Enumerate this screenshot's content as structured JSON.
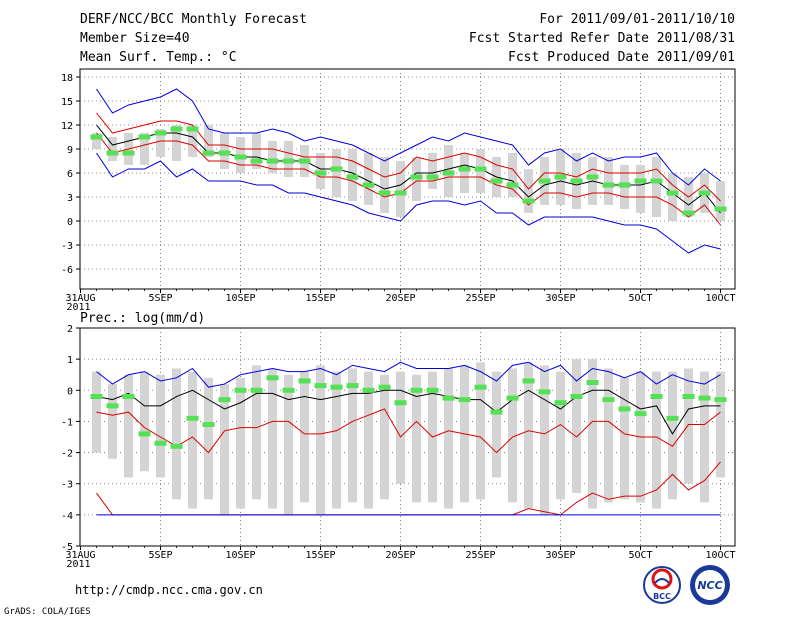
{
  "header": {
    "title": "DERF/NCC/BCC Monthly Forecast",
    "member": "Member Size=40",
    "variable": "Mean Surf. Temp.: °C",
    "period": "For 2011/09/01-2011/10/10",
    "refer": "Fcst Started Refer Date 2011/08/31",
    "produced": "Fcst Produced Date 2011/09/01"
  },
  "footer": {
    "url": "http://cmdp.ncc.cma.gov.cn",
    "credit": "GrADS: COLA/IGES",
    "logo_bcc": "BCC",
    "logo_ncc": "NCC"
  },
  "colors": {
    "box": "#d4d4d4",
    "obs": "#55e055",
    "spread": "#0000dd",
    "quartile": "#dd0000",
    "mean": "#000000",
    "grid": "#666666"
  },
  "chart_data": [
    {
      "type": "box-line",
      "title": "Mean Surf. Temp.: °C",
      "xlabel": "",
      "ylabel": "°C",
      "ylim": [
        -8.5,
        19
      ],
      "yticks": [
        -6,
        -3,
        0,
        3,
        6,
        9,
        12,
        15,
        18
      ],
      "xlim": [
        0,
        40
      ],
      "xticks": [
        {
          "x": 0,
          "label": "31AUG",
          "year": "2011"
        },
        {
          "x": 5,
          "label": "5SEP"
        },
        {
          "x": 10,
          "label": "10SEP"
        },
        {
          "x": 15,
          "label": "15SEP"
        },
        {
          "x": 20,
          "label": "20SEP"
        },
        {
          "x": 25,
          "label": "25SEP"
        },
        {
          "x": 30,
          "label": "30SEP"
        },
        {
          "x": 35,
          "label": "5OCT"
        },
        {
          "x": 40,
          "label": "10OCT"
        }
      ],
      "days": [
        1,
        2,
        3,
        4,
        5,
        6,
        7,
        8,
        9,
        10,
        11,
        12,
        13,
        14,
        15,
        16,
        17,
        18,
        19,
        20,
        21,
        22,
        23,
        24,
        25,
        26,
        27,
        28,
        29,
        30,
        31,
        32,
        33,
        34,
        35,
        36,
        37,
        38,
        39,
        40
      ],
      "box_low": [
        9,
        7.5,
        7,
        7,
        8,
        7.5,
        8,
        8,
        6.5,
        6,
        6.5,
        6,
        5.5,
        5.5,
        4,
        3,
        2.5,
        2,
        1,
        0.5,
        2.5,
        4,
        3,
        3.5,
        3.5,
        3,
        3,
        1,
        2,
        2,
        1.5,
        2,
        2,
        1.5,
        1,
        0.5,
        0,
        0.5,
        1,
        0
      ],
      "box_high": [
        11,
        10.5,
        11,
        11,
        11.5,
        12,
        12,
        12,
        11,
        10.5,
        11,
        10,
        10,
        9.5,
        8.5,
        9,
        9,
        8.5,
        8,
        7.5,
        8,
        8.5,
        9.5,
        8.5,
        9,
        8,
        8.5,
        6.5,
        8,
        9,
        8.5,
        8,
        8,
        7,
        7,
        8,
        6,
        5.5,
        6,
        5
      ],
      "obs": [
        10.5,
        8.5,
        8.5,
        10.5,
        11,
        11.5,
        11.5,
        8.5,
        8.5,
        8,
        7.5,
        7.5,
        7.5,
        7.5,
        6,
        6.5,
        5.5,
        4.5,
        3.5,
        3.5,
        5.5,
        5.5,
        6,
        6.5,
        6.5,
        5,
        4.5,
        2.5,
        5,
        5.5,
        5,
        5.5,
        4.5,
        4.5,
        5,
        5,
        3.5,
        1,
        3.5,
        1.5
      ],
      "series": [
        {
          "name": "max",
          "color": "#0000dd",
          "values": [
            16.5,
            13.5,
            14.5,
            15,
            15.5,
            16.5,
            15,
            11.5,
            11,
            11,
            11,
            11.5,
            11,
            10,
            10.5,
            10,
            9.5,
            8.5,
            7.5,
            8.5,
            9.5,
            10.5,
            10,
            11,
            10.5,
            10,
            9.5,
            7,
            8.5,
            9,
            7.5,
            8.5,
            7.5,
            8,
            8,
            8.5,
            6,
            4.5,
            6.5,
            5
          ]
        },
        {
          "name": "upper",
          "color": "#dd0000",
          "values": [
            13.5,
            11,
            11.5,
            12,
            12.5,
            12.5,
            12,
            9.5,
            9.5,
            9,
            9,
            9,
            8.5,
            8,
            8,
            8,
            7.5,
            6.5,
            5.5,
            6,
            8,
            7.5,
            8,
            8.5,
            8,
            7,
            6.5,
            4,
            6,
            6,
            5.5,
            6.5,
            6,
            6,
            6,
            6.5,
            4.5,
            3,
            4.5,
            2.5
          ]
        },
        {
          "name": "mean",
          "color": "#000000",
          "values": [
            12,
            9.5,
            10,
            10.5,
            11,
            11,
            10.5,
            8.5,
            8.5,
            8,
            8,
            7.5,
            7.5,
            7.5,
            6.5,
            6.5,
            6,
            5,
            4,
            4.5,
            6,
            6,
            6.5,
            7,
            6.5,
            5.5,
            5,
            3,
            4.5,
            5,
            4.5,
            5,
            4.5,
            4.5,
            4.5,
            5,
            3.5,
            2,
            3.5,
            1
          ]
        },
        {
          "name": "lower",
          "color": "#dd0000",
          "values": [
            11,
            8.5,
            9,
            9.5,
            10,
            10,
            9.5,
            7.5,
            7.5,
            7,
            7,
            6.5,
            6.5,
            6.5,
            5.5,
            5.5,
            5,
            4,
            3,
            3.5,
            5,
            5,
            5.5,
            5.5,
            5.5,
            4.5,
            4,
            2,
            3.5,
            3.5,
            3,
            3.5,
            3.5,
            3,
            3,
            3,
            2,
            0.5,
            2,
            -0.5
          ]
        },
        {
          "name": "min",
          "color": "#0000dd",
          "values": [
            8.5,
            5.5,
            6.5,
            6.5,
            7.5,
            5.5,
            6.5,
            5,
            5,
            5,
            4.5,
            4.5,
            3.5,
            3.5,
            3,
            2.5,
            2,
            1,
            0.5,
            0,
            2,
            2.5,
            2.5,
            2,
            2.5,
            1,
            1,
            -0.5,
            0.5,
            0.5,
            0.5,
            0.5,
            0,
            -0.5,
            -0.5,
            -1,
            -2.5,
            -4,
            -3,
            -3.5
          ]
        }
      ]
    },
    {
      "type": "box-line",
      "title": "Prec.: log(mm/d)",
      "xlabel": "",
      "ylabel": "log(mm/d)",
      "ylim": [
        -5,
        2
      ],
      "yticks": [
        -5,
        -4,
        -3,
        -2,
        -1,
        0,
        1,
        2
      ],
      "xlim": [
        0,
        40
      ],
      "xticks": [
        {
          "x": 0,
          "label": "31AUG",
          "year": "2011"
        },
        {
          "x": 5,
          "label": "5SEP"
        },
        {
          "x": 10,
          "label": "10SEP"
        },
        {
          "x": 15,
          "label": "15SEP"
        },
        {
          "x": 20,
          "label": "20SEP"
        },
        {
          "x": 25,
          "label": "25SEP"
        },
        {
          "x": 30,
          "label": "30SEP"
        },
        {
          "x": 35,
          "label": "5OCT"
        },
        {
          "x": 40,
          "label": "10OCT"
        }
      ],
      "days": [
        1,
        2,
        3,
        4,
        5,
        6,
        7,
        8,
        9,
        10,
        11,
        12,
        13,
        14,
        15,
        16,
        17,
        18,
        19,
        20,
        21,
        22,
        23,
        24,
        25,
        26,
        27,
        28,
        29,
        30,
        31,
        32,
        33,
        34,
        35,
        36,
        37,
        38,
        39,
        40
      ],
      "box_low": [
        -2,
        -2.2,
        -2.8,
        -2.6,
        -2.8,
        -3.5,
        -3.8,
        -3.5,
        -4,
        -3.8,
        -3.5,
        -3.8,
        -4,
        -3.6,
        -4,
        -3.8,
        -3.6,
        -3.8,
        -3.5,
        -3,
        -3.6,
        -3.6,
        -3.8,
        -3.6,
        -3.5,
        -2.8,
        -3.6,
        -3.8,
        -4,
        -3.5,
        -3.3,
        -3.8,
        -3.6,
        -3.5,
        -3.6,
        -3.8,
        -3.5,
        -3,
        -3.6,
        -2.8
      ],
      "box_high": [
        0.6,
        0.2,
        0.5,
        0.6,
        0.5,
        0.7,
        0.6,
        0.4,
        0.2,
        0.4,
        0.8,
        0.7,
        0.5,
        0.6,
        0.8,
        0.6,
        0.7,
        0.6,
        0.5,
        0.6,
        0.5,
        0.6,
        0.7,
        0.8,
        0.9,
        0.6,
        0.7,
        0.9,
        0.8,
        0.6,
        1,
        1,
        0.7,
        0.4,
        0.6,
        0.6,
        0.6,
        0.7,
        0.6,
        0.6
      ],
      "obs": [
        -0.2,
        -0.5,
        -0.2,
        -1.4,
        -1.7,
        -1.8,
        -0.9,
        -1.1,
        -0.3,
        0,
        0,
        0.4,
        0,
        0.3,
        0.15,
        0.1,
        0.15,
        0,
        0.1,
        -0.4,
        0,
        0,
        -0.25,
        -0.3,
        0.1,
        -0.7,
        -0.25,
        0.3,
        -0.05,
        -0.4,
        -0.2,
        0.25,
        -0.3,
        -0.6,
        -0.75,
        -0.2,
        -0.9,
        -0.2,
        -0.25,
        -0.3
      ],
      "series": [
        {
          "name": "max",
          "color": "#0000dd",
          "values": [
            0.6,
            0.2,
            0.5,
            0.6,
            0.3,
            0.4,
            0.7,
            0.1,
            0.2,
            0.5,
            0.6,
            0.7,
            0.6,
            0.6,
            0.7,
            0.5,
            0.8,
            0.7,
            0.6,
            0.9,
            0.7,
            0.7,
            0.7,
            0.8,
            0.6,
            0.3,
            0.8,
            0.9,
            0.6,
            0.8,
            0.3,
            0.7,
            0.6,
            0.4,
            0.6,
            0.2,
            0.5,
            0.3,
            0.2,
            0.5
          ]
        },
        {
          "name": "upper",
          "color": "#000000",
          "values": [
            -0.2,
            -0.3,
            -0.1,
            -0.5,
            -0.5,
            -0.2,
            0,
            -0.3,
            -0.6,
            -0.4,
            -0.1,
            -0.1,
            -0.3,
            -0.2,
            -0.3,
            -0.2,
            -0.1,
            -0.1,
            0,
            0,
            -0.2,
            -0.1,
            -0.2,
            -0.3,
            -0.3,
            -0.7,
            -0.3,
            0,
            -0.3,
            -0.6,
            -0.2,
            0,
            0,
            -0.3,
            -0.6,
            -0.5,
            -1.4,
            -0.6,
            -0.5,
            -0.5
          ]
        },
        {
          "name": "lower",
          "color": "#dd0000",
          "values": [
            -0.7,
            -0.8,
            -0.7,
            -1.2,
            -1.5,
            -1.8,
            -1.5,
            -2,
            -1.3,
            -1.2,
            -1.2,
            -1,
            -1,
            -1.4,
            -1.4,
            -1.3,
            -1,
            -0.8,
            -0.6,
            -1.5,
            -1,
            -1.5,
            -1.3,
            -1.4,
            -1.5,
            -2,
            -1.5,
            -1.3,
            -1.4,
            -1.1,
            -1.5,
            -1,
            -1,
            -1.4,
            -1.5,
            -1.5,
            -1.8,
            -1.1,
            -1.1,
            -0.7
          ]
        },
        {
          "name": "min",
          "color": "#dd0000",
          "values": [
            -3.3,
            -4,
            -4,
            -4,
            -4,
            -4,
            -4,
            -4,
            -4,
            -4,
            -4,
            -4,
            -4,
            -4,
            -4,
            -4,
            -4,
            -4,
            -4,
            -4,
            -4,
            -4,
            -4,
            -4,
            -4,
            -4,
            -4,
            -3.8,
            -3.9,
            -4,
            -3.6,
            -3.3,
            -3.5,
            -3.4,
            -3.4,
            -3.2,
            -2.7,
            -3.2,
            -2.9,
            -2.3
          ]
        },
        {
          "name": "floor",
          "color": "#0000dd",
          "values": [
            -4,
            -4,
            -4,
            -4,
            -4,
            -4,
            -4,
            -4,
            -4,
            -4,
            -4,
            -4,
            -4,
            -4,
            -4,
            -4,
            -4,
            -4,
            -4,
            -4,
            -4,
            -4,
            -4,
            -4,
            -4,
            -4,
            -4,
            -4,
            -4,
            -4,
            -4,
            -4,
            -4,
            -4,
            -4,
            -4,
            -4,
            -4,
            -4,
            -4
          ]
        }
      ]
    }
  ]
}
